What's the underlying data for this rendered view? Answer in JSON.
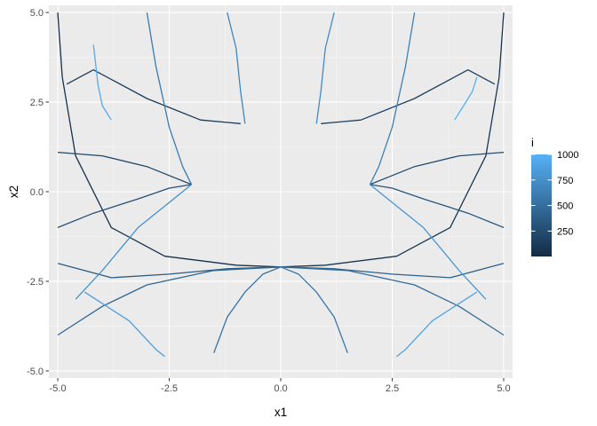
{
  "chart_data": {
    "type": "line",
    "title": "",
    "xlabel": "x1",
    "ylabel": "x2",
    "xlim": [
      -5.2,
      5.2
    ],
    "ylim": [
      -5.2,
      5.2
    ],
    "x_ticks": [
      -5,
      -2.5,
      0,
      2.5,
      5
    ],
    "x_tick_labels": [
      "-5.0",
      "-2.5",
      "0.0",
      "2.5",
      "5.0"
    ],
    "y_ticks": [
      -5,
      -2.5,
      0,
      2.5,
      5
    ],
    "y_tick_labels": [
      "-5.0",
      "-2.5",
      "0.0",
      "2.5",
      "5.0"
    ],
    "grid": true,
    "panel_background": "#ebebeb",
    "legend": {
      "title": "i",
      "placement": "right",
      "range": [
        1,
        1000
      ],
      "breaks": [
        250,
        500,
        750,
        1000
      ],
      "break_labels": [
        "250",
        "500",
        "750",
        "1000"
      ],
      "color_low": "#132b43",
      "color_high": "#56b1f7"
    },
    "attractors": [
      {
        "x": 0,
        "y": -2.1
      },
      {
        "x": -2.0,
        "y": 0.2
      },
      {
        "x": 2.0,
        "y": 0.2
      },
      {
        "x": -0.8,
        "y": 1.9
      },
      {
        "x": 0.8,
        "y": 1.9
      }
    ],
    "series": [
      {
        "i": 40,
        "x": [
          -5.0,
          -4.9,
          -4.6,
          -3.8,
          -2.6,
          -1.0,
          0.0
        ],
        "y": [
          5.0,
          3.2,
          1.0,
          -1.0,
          -1.8,
          -2.05,
          -2.1
        ]
      },
      {
        "i": 80,
        "x": [
          5.0,
          4.9,
          4.6,
          3.8,
          2.6,
          1.0,
          0.0
        ],
        "y": [
          5.0,
          3.2,
          1.0,
          -1.0,
          -1.8,
          -2.05,
          -2.1
        ]
      },
      {
        "i": 120,
        "x": [
          -4.8,
          -4.2,
          -3.0,
          -1.8,
          -0.9
        ],
        "y": [
          3.0,
          3.4,
          2.6,
          2.0,
          1.9
        ]
      },
      {
        "i": 160,
        "x": [
          4.8,
          4.2,
          3.0,
          1.8,
          0.9
        ],
        "y": [
          3.0,
          3.4,
          2.6,
          2.0,
          1.9
        ]
      },
      {
        "i": 200,
        "x": [
          -5.0,
          -4.0,
          -3.0,
          -2.4,
          -2.0
        ],
        "y": [
          1.1,
          1.0,
          0.7,
          0.4,
          0.2
        ]
      },
      {
        "i": 240,
        "x": [
          5.0,
          4.0,
          3.0,
          2.4,
          2.0
        ],
        "y": [
          1.1,
          1.0,
          0.7,
          0.4,
          0.2
        ]
      },
      {
        "i": 280,
        "x": [
          -5.0,
          -4.2,
          -3.2,
          -2.5,
          -2.0
        ],
        "y": [
          -1.0,
          -0.6,
          -0.2,
          0.1,
          0.2
        ]
      },
      {
        "i": 320,
        "x": [
          5.0,
          4.2,
          3.2,
          2.5,
          2.0
        ],
        "y": [
          -1.0,
          -0.6,
          -0.2,
          0.1,
          0.2
        ]
      },
      {
        "i": 360,
        "x": [
          -5.0,
          -3.8,
          -2.5,
          -1.2,
          0.0
        ],
        "y": [
          -2.0,
          -2.4,
          -2.3,
          -2.15,
          -2.1
        ]
      },
      {
        "i": 400,
        "x": [
          5.0,
          3.8,
          2.5,
          1.2,
          0.0
        ],
        "y": [
          -2.0,
          -2.4,
          -2.3,
          -2.15,
          -2.1
        ]
      },
      {
        "i": 440,
        "x": [
          -5.0,
          -4.0,
          -3.0,
          -1.5,
          0.0
        ],
        "y": [
          -4.0,
          -3.2,
          -2.6,
          -2.2,
          -2.1
        ]
      },
      {
        "i": 480,
        "x": [
          5.0,
          4.0,
          3.0,
          1.5,
          0.0
        ],
        "y": [
          -4.0,
          -3.2,
          -2.6,
          -2.2,
          -2.1
        ]
      },
      {
        "i": 520,
        "x": [
          -1.5,
          -1.2,
          -0.8,
          -0.4,
          0.0
        ],
        "y": [
          -4.5,
          -3.5,
          -2.8,
          -2.3,
          -2.1
        ]
      },
      {
        "i": 560,
        "x": [
          1.5,
          1.2,
          0.8,
          0.4,
          0.0
        ],
        "y": [
          -4.5,
          -3.5,
          -2.8,
          -2.3,
          -2.1
        ]
      },
      {
        "i": 600,
        "x": [
          -3.0,
          -2.8,
          -2.5,
          -2.2,
          -2.0
        ],
        "y": [
          5.0,
          3.5,
          1.8,
          0.7,
          0.2
        ]
      },
      {
        "i": 640,
        "x": [
          3.0,
          2.8,
          2.5,
          2.2,
          2.0
        ],
        "y": [
          5.0,
          3.5,
          1.8,
          0.7,
          0.2
        ]
      },
      {
        "i": 680,
        "x": [
          -1.2,
          -1.0,
          -0.9,
          -0.8
        ],
        "y": [
          5.0,
          4.0,
          2.8,
          1.9
        ]
      },
      {
        "i": 720,
        "x": [
          1.2,
          1.0,
          0.9,
          0.8
        ],
        "y": [
          5.0,
          4.0,
          2.8,
          1.9
        ]
      },
      {
        "i": 760,
        "x": [
          -4.6,
          -4.0,
          -3.2,
          -2.4,
          -2.0
        ],
        "y": [
          -3.0,
          -2.2,
          -1.0,
          -0.2,
          0.2
        ]
      },
      {
        "i": 800,
        "x": [
          4.6,
          4.0,
          3.2,
          2.4,
          2.0
        ],
        "y": [
          -3.0,
          -2.2,
          -1.0,
          -0.2,
          0.2
        ]
      },
      {
        "i": 850,
        "x": [
          -2.6,
          -2.8,
          -3.4,
          -4.4
        ],
        "y": [
          -4.6,
          -4.4,
          -3.6,
          -2.8
        ]
      },
      {
        "i": 900,
        "x": [
          2.6,
          2.8,
          3.4,
          4.4
        ],
        "y": [
          -4.6,
          -4.4,
          -3.6,
          -2.8
        ]
      },
      {
        "i": 950,
        "x": [
          -4.2,
          -4.1,
          -4.0,
          -3.8
        ],
        "y": [
          4.1,
          3.0,
          2.4,
          2.0
        ]
      },
      {
        "i": 1000,
        "x": [
          4.4,
          4.3,
          4.1,
          3.9
        ],
        "y": [
          3.2,
          2.8,
          2.4,
          2.0
        ]
      }
    ]
  }
}
